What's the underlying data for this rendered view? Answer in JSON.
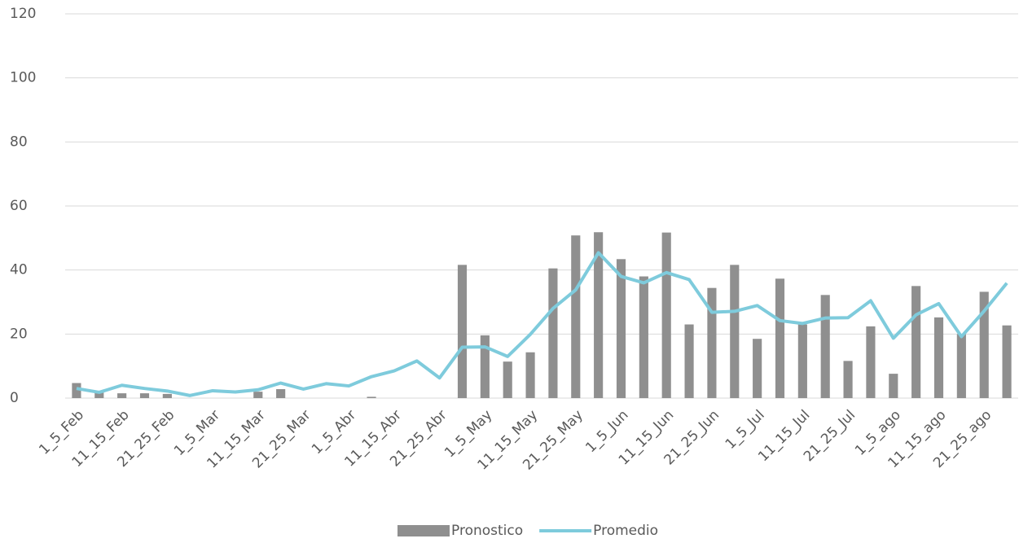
{
  "chart_data": {
    "type": "bar_line",
    "categories": [
      "1_5_Feb",
      null,
      "11_15_Feb",
      null,
      "21_25_Feb",
      null,
      "1_5_Mar",
      null,
      "11_15_Mar",
      null,
      "21_25_Mar",
      null,
      "1_5_Abr",
      null,
      "11_15_Abr",
      null,
      "21_25_Abr",
      null,
      "1_5_May",
      null,
      "11_15_May",
      null,
      "21_25_May",
      null,
      "1_5_Jun",
      null,
      "11_15_Jun",
      null,
      "21_25_Jun",
      null,
      "1_5_Jul",
      null,
      "11_15_Jul",
      null,
      "21_25_Jul",
      null,
      "1_5_ago",
      null,
      "11_15_ago",
      null,
      "21_25_ago",
      null
    ],
    "series": [
      {
        "name": "Pronostico",
        "kind": "bar",
        "color": "#8f8f8f",
        "values": [
          4.7,
          1.8,
          1.5,
          1.5,
          1.3,
          0,
          0,
          0,
          2,
          2.8,
          0,
          0,
          0,
          0.4,
          0,
          0,
          0,
          41.6,
          19.6,
          11.4,
          14.3,
          40.5,
          50.8,
          51.8,
          43.4,
          38,
          51.7,
          23,
          34.4,
          41.6,
          18.5,
          37.3,
          23,
          32.2,
          11.6,
          22.4,
          7.6,
          35,
          25.2,
          20,
          33.2,
          22.7
        ]
      },
      {
        "name": "Promedio",
        "kind": "line",
        "color": "#7ecbdc",
        "values": [
          3,
          1.8,
          4,
          3,
          2.2,
          0.8,
          2.3,
          1.9,
          2.6,
          4.7,
          2.8,
          4.5,
          3.8,
          6.7,
          8.5,
          11.6,
          6.3,
          15.9,
          16,
          13,
          19.9,
          28,
          33.8,
          45.4,
          38,
          36,
          39.2,
          37,
          26.8,
          27.1,
          28.9,
          24.2,
          23.3,
          25,
          25.1,
          30.4,
          18.7,
          26,
          29.5,
          19.2,
          27.2,
          35.9
        ]
      }
    ],
    "ylim": [
      0,
      120
    ],
    "yticks": [
      0,
      20,
      40,
      60,
      80,
      100,
      120
    ],
    "grid": true,
    "legend": "bottom"
  }
}
